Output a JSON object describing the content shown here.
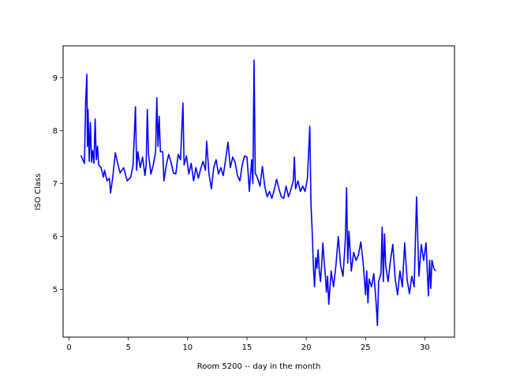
{
  "chart_data": {
    "type": "line",
    "title": "",
    "xlabel": "Room 5200 -- day in the month",
    "ylabel": "ISO Class",
    "xlim": [
      -0.5,
      32.5
    ],
    "ylim": [
      4.1,
      9.6
    ],
    "xticks": [
      0,
      5,
      10,
      15,
      20,
      25,
      30
    ],
    "yticks": [
      5,
      6,
      7,
      8,
      9
    ],
    "grid": false,
    "legend": "none",
    "series": [
      {
        "color": "#0000ff",
        "points": [
          [
            1.0,
            7.53
          ],
          [
            1.3,
            7.38
          ],
          [
            1.4,
            8.55
          ],
          [
            1.5,
            9.06
          ],
          [
            1.55,
            7.7
          ],
          [
            1.6,
            8.4
          ],
          [
            1.7,
            7.42
          ],
          [
            1.8,
            8.15
          ],
          [
            1.9,
            7.4
          ],
          [
            2.0,
            7.62
          ],
          [
            2.1,
            7.38
          ],
          [
            2.2,
            8.22
          ],
          [
            2.3,
            7.45
          ],
          [
            2.4,
            7.7
          ],
          [
            2.5,
            7.35
          ],
          [
            2.7,
            7.3
          ],
          [
            2.9,
            7.12
          ],
          [
            3.0,
            7.25
          ],
          [
            3.2,
            7.05
          ],
          [
            3.4,
            7.1
          ],
          [
            3.5,
            6.82
          ],
          [
            3.7,
            7.15
          ],
          [
            3.9,
            7.58
          ],
          [
            4.1,
            7.38
          ],
          [
            4.3,
            7.2
          ],
          [
            4.6,
            7.3
          ],
          [
            4.9,
            7.05
          ],
          [
            5.2,
            7.12
          ],
          [
            5.4,
            7.35
          ],
          [
            5.6,
            8.45
          ],
          [
            5.7,
            7.25
          ],
          [
            5.8,
            7.6
          ],
          [
            6.0,
            7.3
          ],
          [
            6.2,
            7.5
          ],
          [
            6.4,
            7.15
          ],
          [
            6.5,
            7.35
          ],
          [
            6.6,
            8.4
          ],
          [
            6.7,
            7.55
          ],
          [
            6.9,
            7.18
          ],
          [
            7.1,
            7.35
          ],
          [
            7.3,
            7.6
          ],
          [
            7.4,
            8.62
          ],
          [
            7.5,
            7.7
          ],
          [
            7.6,
            8.27
          ],
          [
            7.7,
            7.6
          ],
          [
            7.9,
            7.6
          ],
          [
            8.0,
            7.05
          ],
          [
            8.2,
            7.35
          ],
          [
            8.4,
            7.55
          ],
          [
            8.6,
            7.4
          ],
          [
            8.8,
            7.2
          ],
          [
            9.0,
            7.18
          ],
          [
            9.2,
            7.55
          ],
          [
            9.4,
            7.45
          ],
          [
            9.6,
            8.52
          ],
          [
            9.7,
            7.35
          ],
          [
            9.9,
            7.52
          ],
          [
            10.1,
            7.18
          ],
          [
            10.3,
            7.38
          ],
          [
            10.5,
            7.05
          ],
          [
            10.7,
            7.3
          ],
          [
            10.9,
            7.1
          ],
          [
            11.1,
            7.28
          ],
          [
            11.3,
            7.42
          ],
          [
            11.5,
            7.25
          ],
          [
            11.6,
            7.8
          ],
          [
            11.8,
            7.18
          ],
          [
            12.0,
            6.9
          ],
          [
            12.2,
            7.3
          ],
          [
            12.4,
            7.45
          ],
          [
            12.6,
            7.18
          ],
          [
            12.8,
            7.3
          ],
          [
            13.0,
            7.15
          ],
          [
            13.2,
            7.45
          ],
          [
            13.4,
            7.78
          ],
          [
            13.6,
            7.3
          ],
          [
            13.8,
            7.5
          ],
          [
            14.0,
            7.4
          ],
          [
            14.2,
            7.15
          ],
          [
            14.4,
            7.05
          ],
          [
            14.6,
            7.35
          ],
          [
            14.8,
            7.52
          ],
          [
            15.0,
            7.5
          ],
          [
            15.1,
            7.2
          ],
          [
            15.2,
            6.85
          ],
          [
            15.4,
            7.45
          ],
          [
            15.5,
            7.0
          ],
          [
            15.6,
            9.33
          ],
          [
            15.7,
            7.2
          ],
          [
            15.9,
            7.1
          ],
          [
            16.1,
            6.95
          ],
          [
            16.3,
            7.32
          ],
          [
            16.5,
            6.95
          ],
          [
            16.7,
            6.75
          ],
          [
            16.9,
            6.85
          ],
          [
            17.1,
            6.72
          ],
          [
            17.3,
            6.88
          ],
          [
            17.5,
            7.08
          ],
          [
            17.7,
            6.9
          ],
          [
            17.9,
            6.75
          ],
          [
            18.1,
            6.72
          ],
          [
            18.3,
            6.95
          ],
          [
            18.5,
            6.75
          ],
          [
            18.7,
            6.88
          ],
          [
            18.9,
            7.05
          ],
          [
            19.0,
            7.5
          ],
          [
            19.1,
            6.9
          ],
          [
            19.3,
            7.05
          ],
          [
            19.5,
            6.85
          ],
          [
            19.7,
            6.95
          ],
          [
            19.9,
            6.85
          ],
          [
            20.1,
            7.1
          ],
          [
            20.3,
            8.08
          ],
          [
            20.4,
            6.6
          ],
          [
            20.5,
            6.1
          ],
          [
            20.6,
            5.45
          ],
          [
            20.7,
            5.05
          ],
          [
            20.8,
            5.6
          ],
          [
            20.9,
            5.4
          ],
          [
            21.0,
            5.75
          ],
          [
            21.1,
            5.35
          ],
          [
            21.2,
            5.15
          ],
          [
            21.3,
            5.45
          ],
          [
            21.4,
            5.88
          ],
          [
            21.5,
            5.55
          ],
          [
            21.6,
            5.3
          ],
          [
            21.7,
            4.95
          ],
          [
            21.8,
            5.25
          ],
          [
            21.9,
            4.72
          ],
          [
            22.1,
            5.35
          ],
          [
            22.3,
            5.05
          ],
          [
            22.5,
            5.45
          ],
          [
            22.7,
            6.0
          ],
          [
            22.9,
            5.45
          ],
          [
            23.1,
            5.25
          ],
          [
            23.3,
            5.95
          ],
          [
            23.4,
            6.92
          ],
          [
            23.5,
            5.5
          ],
          [
            23.6,
            6.1
          ],
          [
            23.8,
            5.35
          ],
          [
            24.0,
            5.7
          ],
          [
            24.2,
            5.55
          ],
          [
            24.4,
            5.65
          ],
          [
            24.6,
            5.9
          ],
          [
            24.8,
            5.5
          ],
          [
            25.0,
            4.9
          ],
          [
            25.1,
            5.35
          ],
          [
            25.2,
            4.75
          ],
          [
            25.3,
            5.2
          ],
          [
            25.5,
            5.05
          ],
          [
            25.7,
            5.3
          ],
          [
            25.9,
            4.72
          ],
          [
            26.0,
            4.32
          ],
          [
            26.1,
            5.15
          ],
          [
            26.3,
            5.3
          ],
          [
            26.4,
            6.18
          ],
          [
            26.5,
            5.15
          ],
          [
            26.6,
            6.05
          ],
          [
            26.7,
            5.45
          ],
          [
            26.9,
            5.15
          ],
          [
            27.1,
            5.55
          ],
          [
            27.3,
            5.85
          ],
          [
            27.5,
            5.2
          ],
          [
            27.7,
            4.9
          ],
          [
            27.9,
            5.35
          ],
          [
            28.1,
            5.05
          ],
          [
            28.3,
            5.88
          ],
          [
            28.5,
            5.2
          ],
          [
            28.7,
            4.92
          ],
          [
            28.9,
            5.25
          ],
          [
            29.1,
            5.05
          ],
          [
            29.3,
            6.75
          ],
          [
            29.5,
            5.25
          ],
          [
            29.7,
            5.85
          ],
          [
            29.9,
            5.55
          ],
          [
            30.1,
            5.88
          ],
          [
            30.3,
            4.88
          ],
          [
            30.4,
            5.55
          ],
          [
            30.5,
            5.02
          ],
          [
            30.6,
            5.55
          ],
          [
            30.75,
            5.4
          ],
          [
            30.9,
            5.35
          ]
        ]
      }
    ]
  }
}
